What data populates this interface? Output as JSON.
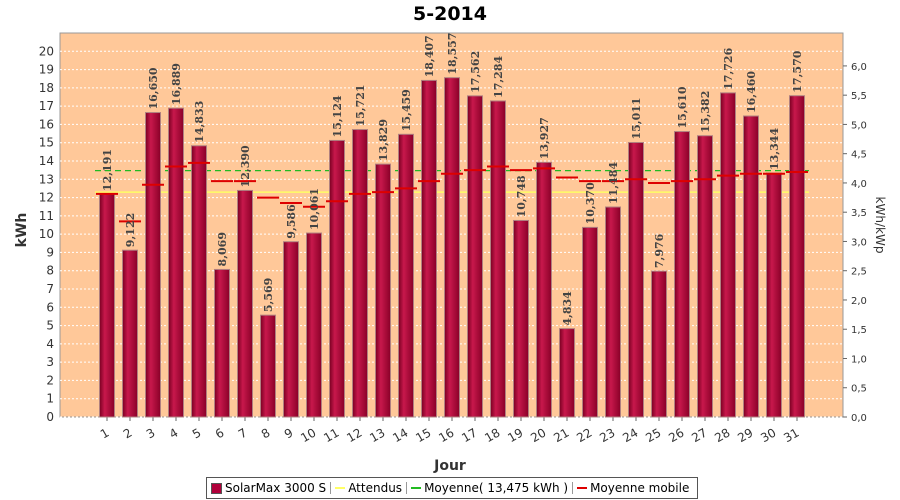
{
  "chart_data": {
    "type": "bar",
    "title": "5-2014",
    "xlabel": "Jour",
    "ylabel": "kWh",
    "ylabel_right": "kWh/kWp",
    "ylim": [
      0,
      21
    ],
    "yticks": [
      0,
      1,
      2,
      3,
      4,
      5,
      6,
      7,
      8,
      9,
      10,
      11,
      12,
      13,
      14,
      15,
      16,
      17,
      18,
      19,
      20
    ],
    "ylim_right": [
      0,
      6.5625
    ],
    "yticks_right": [
      "0,0",
      "0,5",
      "1,0",
      "1,5",
      "2,0",
      "2,5",
      "3,0",
      "3,5",
      "4,0",
      "4,5",
      "5,0",
      "5,5",
      "6,0"
    ],
    "categories": [
      "1",
      "2",
      "3",
      "4",
      "5",
      "6",
      "7",
      "8",
      "9",
      "10",
      "11",
      "12",
      "13",
      "14",
      "15",
      "16",
      "17",
      "18",
      "19",
      "20",
      "21",
      "22",
      "23",
      "24",
      "25",
      "26",
      "27",
      "28",
      "29",
      "30",
      "31"
    ],
    "series": [
      {
        "name": "SolarMax 3000 S",
        "type": "bar",
        "color": "#b0003a",
        "values": [
          12.191,
          9.122,
          16.65,
          16.889,
          14.833,
          8.069,
          12.39,
          5.569,
          9.586,
          10.061,
          15.124,
          15.721,
          13.829,
          15.459,
          18.407,
          18.557,
          17.562,
          17.284,
          10.748,
          13.927,
          4.834,
          10.37,
          11.484,
          15.011,
          7.976,
          15.61,
          15.382,
          17.726,
          16.46,
          13.344,
          17.57
        ],
        "labels": [
          "12,191",
          "9,122",
          "16,650",
          "16,889",
          "14,833",
          "8,069",
          "12,390",
          "5,569",
          "9,586",
          "10,061",
          "15,124",
          "15,721",
          "13,829",
          "15,459",
          "18,407",
          "18,557",
          "17,562",
          "17,284",
          "10,748",
          "13,927",
          "4,834",
          "10,370",
          "11,484",
          "15,011",
          "7,976",
          "15,610",
          "15,382",
          "17,726",
          "16,460",
          "13,344",
          "17,570"
        ]
      },
      {
        "name": "Attendus",
        "type": "line",
        "color": "#ffff66",
        "value": 12.3
      },
      {
        "name": "Moyenne( 13,475 kWh )",
        "type": "line",
        "color": "#22bb22",
        "value": 13.475
      },
      {
        "name": "Moyenne mobile",
        "type": "step",
        "color": "#dd0000",
        "values": [
          12.2,
          10.7,
          12.7,
          13.7,
          13.9,
          12.9,
          12.9,
          12.0,
          11.7,
          11.5,
          11.8,
          12.2,
          12.3,
          12.5,
          12.9,
          13.3,
          13.5,
          13.7,
          13.5,
          13.6,
          13.1,
          12.9,
          12.9,
          13.0,
          12.8,
          12.9,
          13.0,
          13.2,
          13.3,
          13.3,
          13.4
        ]
      }
    ],
    "grid": true,
    "legend": "bottom"
  }
}
